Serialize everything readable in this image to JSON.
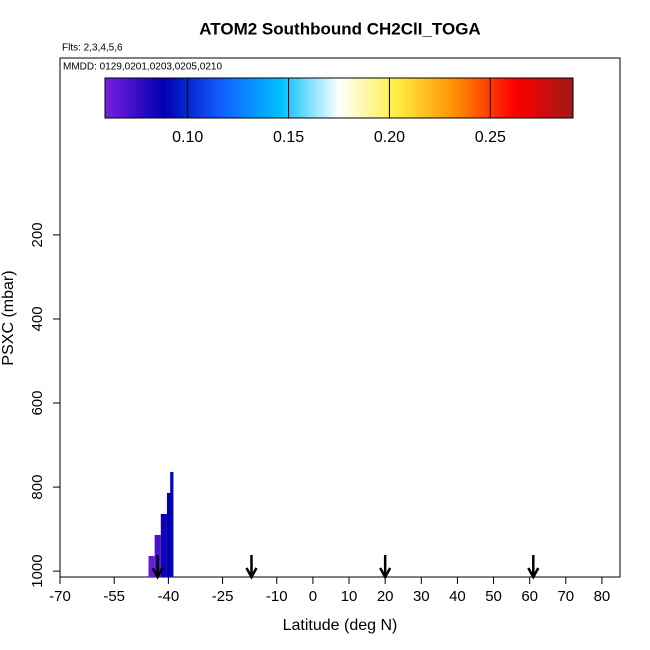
{
  "chart_data": {
    "type": "curtain",
    "title": "ATOM2 Southbound CH2ClI_TOGA",
    "flights": "Flts: 2,3,4,5,6",
    "dates": "MMDD: 0129,0201,0203,0205,0210",
    "x_label": "Latitude (deg N)",
    "y_label": "PSXC (mbar)",
    "xlim": [
      -70,
      85
    ],
    "xticks": [
      -70,
      -55,
      -40,
      -25,
      -10,
      0,
      10,
      20,
      30,
      40,
      50,
      60,
      70,
      80
    ],
    "ylim": [
      -221,
      1014
    ],
    "y_inverted": true,
    "yticks": [
      200,
      400,
      600,
      800,
      1000
    ],
    "lat": [
      -45.5,
      -43.8,
      -42.1,
      -40.4,
      -39.5
    ],
    "psxc": [
      964,
      914,
      864,
      814,
      764
    ],
    "values": [
      0.063,
      0.07,
      0.085,
      0.088,
      0.09
    ],
    "flight_arrows_lat": [
      -43,
      -17,
      20,
      61
    ],
    "colorbar": {
      "lim": [
        0.059,
        0.291
      ],
      "ticks": [
        {
          "value": 0.1,
          "label": "0.10"
        },
        0.15,
        {
          "value": 0.2,
          "label": "0.20"
        },
        0.25
      ],
      "colors": [
        "#7a1fe0",
        "#0000b0",
        "#1060ff",
        "#00bfff",
        "#ffffff",
        "#ffee40",
        "#ff8c00",
        "#ff0000",
        "#a01818"
      ]
    }
  }
}
